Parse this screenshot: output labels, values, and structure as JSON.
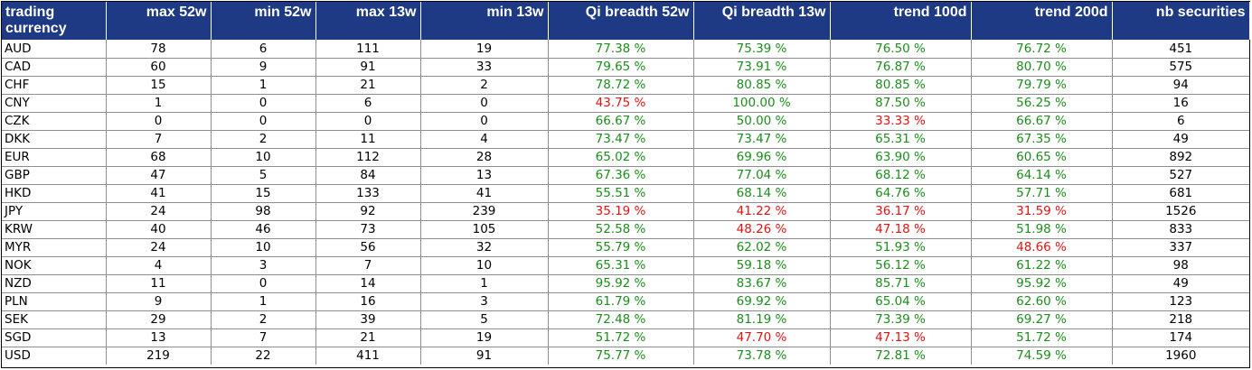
{
  "columns": [
    "trading currency",
    "max 52w",
    "min 52w",
    "max 13w",
    "min 13w",
    "Qi breadth 52w",
    "Qi breadth 13w",
    "trend 100d",
    "trend 200d",
    "nb securities"
  ],
  "colors": {
    "header_bg": "#1f3a84",
    "header_text": "#ffffff",
    "positive": "#1e8c1e",
    "negative": "#e01414"
  },
  "rows": [
    [
      "AUD",
      "78",
      "6",
      "111",
      "19",
      "77.38 %",
      "75.39 %",
      "76.50 %",
      "76.72 %",
      "451"
    ],
    [
      "CAD",
      "60",
      "9",
      "91",
      "33",
      "79.65 %",
      "73.91 %",
      "76.87 %",
      "80.70 %",
      "575"
    ],
    [
      "CHF",
      "15",
      "1",
      "21",
      "2",
      "78.72 %",
      "80.85 %",
      "80.85 %",
      "79.79 %",
      "94"
    ],
    [
      "CNY",
      "1",
      "0",
      "6",
      "0",
      "43.75 %",
      "100.00 %",
      "87.50 %",
      "56.25 %",
      "16"
    ],
    [
      "CZK",
      "0",
      "0",
      "0",
      "0",
      "66.67 %",
      "50.00 %",
      "33.33 %",
      "66.67 %",
      "6"
    ],
    [
      "DKK",
      "7",
      "2",
      "11",
      "4",
      "73.47 %",
      "73.47 %",
      "65.31 %",
      "67.35 %",
      "49"
    ],
    [
      "EUR",
      "68",
      "10",
      "112",
      "28",
      "65.02 %",
      "69.96 %",
      "63.90 %",
      "60.65 %",
      "892"
    ],
    [
      "GBP",
      "47",
      "5",
      "84",
      "13",
      "67.36 %",
      "77.04 %",
      "68.12 %",
      "64.14 %",
      "527"
    ],
    [
      "HKD",
      "41",
      "15",
      "133",
      "41",
      "55.51 %",
      "68.14 %",
      "64.76 %",
      "57.71 %",
      "681"
    ],
    [
      "JPY",
      "24",
      "98",
      "92",
      "239",
      "35.19 %",
      "41.22 %",
      "36.17 %",
      "31.59 %",
      "1526"
    ],
    [
      "KRW",
      "40",
      "46",
      "73",
      "105",
      "52.58 %",
      "48.26 %",
      "47.18 %",
      "51.98 %",
      "833"
    ],
    [
      "MYR",
      "24",
      "10",
      "56",
      "32",
      "55.79 %",
      "62.02 %",
      "51.93 %",
      "48.66 %",
      "337"
    ],
    [
      "NOK",
      "4",
      "3",
      "7",
      "10",
      "65.31 %",
      "59.18 %",
      "56.12 %",
      "61.22 %",
      "98"
    ],
    [
      "NZD",
      "11",
      "0",
      "14",
      "1",
      "95.92 %",
      "83.67 %",
      "85.71 %",
      "95.92 %",
      "49"
    ],
    [
      "PLN",
      "9",
      "1",
      "16",
      "3",
      "61.79 %",
      "69.92 %",
      "65.04 %",
      "62.60 %",
      "123"
    ],
    [
      "SEK",
      "29",
      "2",
      "39",
      "5",
      "72.48 %",
      "81.19 %",
      "73.39 %",
      "69.27 %",
      "218"
    ],
    [
      "SGD",
      "13",
      "7",
      "21",
      "19",
      "51.72 %",
      "47.70 %",
      "47.13 %",
      "51.72 %",
      "174"
    ],
    [
      "USD",
      "219",
      "22",
      "411",
      "91",
      "75.77 %",
      "73.78 %",
      "72.81 %",
      "74.59 %",
      "1960"
    ]
  ]
}
